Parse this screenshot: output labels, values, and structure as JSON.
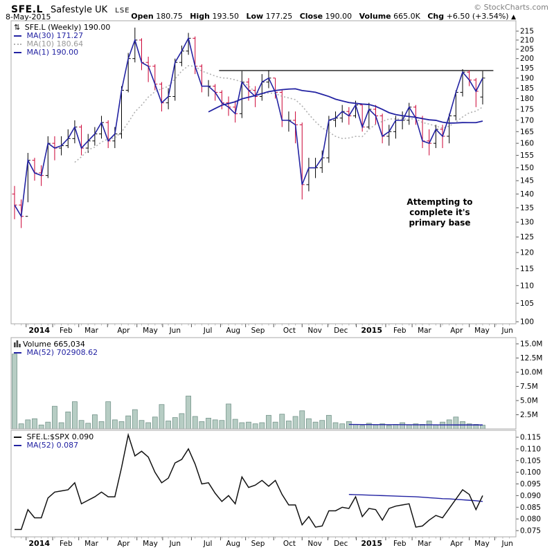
{
  "header": {
    "symbol": "SFE.L",
    "name": "Safestyle UK",
    "exchange": "LSE",
    "date": "8-May-2015",
    "copyright": "© StockCharts.com",
    "quote": {
      "open": {
        "label": "Open",
        "value": "180.75"
      },
      "high": {
        "label": "High",
        "value": "193.50"
      },
      "low": {
        "label": "Low",
        "value": "177.25"
      },
      "close": {
        "label": "Close",
        "value": "190.00"
      },
      "volume": {
        "label": "Volume",
        "value": "665.0K"
      },
      "chg": {
        "label": "Chg",
        "value": "+6.50 (+3.54%)",
        "arrow": "▲"
      }
    }
  },
  "chart_data": {
    "type": "ohlc+volume+line",
    "period": "Weekly",
    "weeks": 71,
    "months": [
      {
        "label": "2014",
        "week": 3.7,
        "bold": true
      },
      {
        "label": "Feb",
        "week": 7.7
      },
      {
        "label": "Mar",
        "week": 11.5
      },
      {
        "label": "Apr",
        "week": 16.3
      },
      {
        "label": "May",
        "week": 20.3
      },
      {
        "label": "Jun",
        "week": 24.0
      },
      {
        "label": "Jul",
        "week": 28.9
      },
      {
        "label": "Aug",
        "week": 32.7
      },
      {
        "label": "Sep",
        "week": 36.4
      },
      {
        "label": "Oct",
        "week": 41.1
      },
      {
        "label": "Nov",
        "week": 44.9
      },
      {
        "label": "Dec",
        "week": 48.8
      },
      {
        "label": "2015",
        "week": 53.4,
        "bold": true
      },
      {
        "label": "Feb",
        "week": 57.6
      },
      {
        "label": "Mar",
        "week": 61.3
      },
      {
        "label": "Apr",
        "week": 66.1
      },
      {
        "label": "May",
        "week": 69.9
      },
      {
        "label": "Jun",
        "week": 73.7
      }
    ],
    "price": {
      "scale": "log",
      "ylim": [
        100,
        215
      ],
      "ytick_step": 5,
      "legend": {
        "symbol_icon": "⇅",
        "symbol_label": "SFE.L (Weekly)",
        "symbol_value": "190.00",
        "ma30_label": "MA(30)",
        "ma30_value": "171.27",
        "ma10_label": "MA(10)",
        "ma10_value": "180.64",
        "ma1_label": "MA(1)",
        "ma1_value": "190.00"
      },
      "open": [
        140,
        136,
        132,
        153,
        148,
        147,
        160,
        158,
        159,
        162,
        167,
        158,
        161,
        164,
        169,
        161,
        164,
        184,
        200,
        210,
        198,
        196,
        187,
        178,
        181,
        198,
        204,
        211,
        196,
        186,
        186,
        183,
        178,
        176,
        173,
        188,
        184,
        181,
        188,
        190,
        183,
        170,
        170,
        168,
        143.5,
        150,
        150,
        154,
        170,
        171,
        174,
        172,
        177,
        167,
        175,
        172,
        163,
        165,
        170,
        170,
        176,
        171,
        161,
        160,
        166,
        163,
        172,
        183,
        193,
        189,
        180.75
      ],
      "high": [
        143,
        138,
        156,
        154,
        151,
        163,
        163,
        163,
        166,
        170,
        168,
        164,
        167,
        172,
        170,
        167,
        186,
        203,
        217,
        211,
        201,
        197,
        188,
        185,
        200,
        207,
        214,
        212,
        197,
        189,
        187,
        184,
        181,
        179,
        193.5,
        190,
        186,
        192,
        194,
        190,
        184,
        174,
        174,
        169,
        154,
        154,
        157,
        172,
        174,
        177,
        176,
        179,
        177,
        178,
        177,
        173,
        168,
        172,
        174,
        178,
        177,
        172,
        166,
        168,
        168,
        173,
        184,
        194.5,
        194,
        190,
        193.5
      ],
      "low": [
        131,
        128,
        137,
        145,
        143,
        146,
        153,
        155,
        158,
        160,
        155,
        156,
        159,
        162,
        158,
        158,
        162,
        183,
        198,
        194,
        188,
        184,
        174,
        175,
        179,
        196,
        202,
        192,
        183,
        181,
        179,
        175,
        172,
        169,
        171,
        179,
        176,
        179,
        185,
        180,
        167,
        165,
        160,
        138,
        141,
        146,
        148,
        152,
        167,
        169,
        168,
        171,
        165,
        166,
        168,
        160,
        159,
        162,
        166,
        168,
        168,
        158,
        155,
        158,
        158,
        160,
        170,
        181,
        186,
        176,
        177.25
      ],
      "close": [
        136,
        132,
        153,
        148,
        147,
        160,
        158,
        159,
        162,
        167,
        158,
        161,
        164,
        169,
        161,
        164,
        184,
        200,
        210,
        198,
        196,
        187,
        178,
        181,
        198,
        204,
        211,
        196,
        186,
        186,
        183,
        178,
        176,
        173,
        188,
        184,
        181,
        188,
        190,
        183,
        170,
        170,
        168,
        143.5,
        150,
        150,
        154,
        170,
        171,
        174,
        172,
        177,
        167,
        175,
        172,
        163,
        165,
        170,
        170,
        176,
        171,
        161,
        160,
        166,
        163,
        172,
        183,
        193,
        189,
        183.5,
        190
      ],
      "resistance": {
        "price": 193.8,
        "from_week": 31,
        "to_week": 71.6
      },
      "annotation": {
        "line1": "Attempting to complete it's",
        "line2": "primary base"
      }
    },
    "volume": {
      "ylim_millions": [
        0,
        15
      ],
      "yticks": [
        "2.5M",
        "5.0M",
        "7.5M",
        "10.0M",
        "12.5M",
        "15.0M"
      ],
      "legend": {
        "label": "Volume",
        "value": "665,034",
        "ma_label": "MA(52)",
        "ma_value": "702908.62"
      },
      "values_millions": [
        13.2,
        0.9,
        1.6,
        1.8,
        0.7,
        1.2,
        4.0,
        1.1,
        3.0,
        4.8,
        1.5,
        1.0,
        2.5,
        1.3,
        4.8,
        1.6,
        1.3,
        2.3,
        3.4,
        1.5,
        1.1,
        2.1,
        4.3,
        1.4,
        2.0,
        2.7,
        5.8,
        2.2,
        1.3,
        1.9,
        1.6,
        1.5,
        4.4,
        1.7,
        1.1,
        1.2,
        0.9,
        1.1,
        2.4,
        1.2,
        2.6,
        1.4,
        2.2,
        3.2,
        1.8,
        1.2,
        1.5,
        2.4,
        1.1,
        0.9,
        1.3,
        0.8,
        0.6,
        1.0,
        0.7,
        0.9,
        0.6,
        0.8,
        1.1,
        0.7,
        0.9,
        0.8,
        1.4,
        0.7,
        1.2,
        1.6,
        2.1,
        1.3,
        0.9,
        0.8,
        0.67
      ],
      "ma52": {
        "start": 50,
        "values_millions": [
          0.78,
          0.78,
          0.77,
          0.77,
          0.76,
          0.76,
          0.75,
          0.75,
          0.74,
          0.74,
          0.73,
          0.73,
          0.72,
          0.72,
          0.71,
          0.71,
          0.7,
          0.7,
          0.7,
          0.7,
          0.7
        ]
      }
    },
    "ratio": {
      "ylim": [
        0.075,
        0.115
      ],
      "ytick_step": 0.005,
      "legend": {
        "label": "SFE.L:$SPX",
        "value": "0.090",
        "ma_label": "MA(52)",
        "ma_value": "0.087"
      },
      "values": [
        0.0755,
        0.0755,
        0.084,
        0.0805,
        0.0805,
        0.089,
        0.0915,
        0.092,
        0.0925,
        0.0955,
        0.0865,
        0.088,
        0.0895,
        0.0915,
        0.0895,
        0.0895,
        0.102,
        0.116,
        0.107,
        0.109,
        0.1065,
        0.1,
        0.0955,
        0.0975,
        0.104,
        0.1055,
        0.11,
        0.1035,
        0.095,
        0.0955,
        0.091,
        0.0875,
        0.09,
        0.0865,
        0.098,
        0.0935,
        0.0945,
        0.0965,
        0.094,
        0.0965,
        0.0905,
        0.086,
        0.086,
        0.0775,
        0.081,
        0.0765,
        0.077,
        0.0835,
        0.0835,
        0.085,
        0.0845,
        0.0895,
        0.081,
        0.0845,
        0.084,
        0.0795,
        0.0845,
        0.0855,
        0.086,
        0.0865,
        0.0765,
        0.077,
        0.0795,
        0.0815,
        0.0805,
        0.0845,
        0.0885,
        0.0925,
        0.0905,
        0.084,
        0.09
      ],
      "ma52": {
        "start": 50,
        "values": [
          0.0905,
          0.0904,
          0.0903,
          0.0902,
          0.0901,
          0.09,
          0.0899,
          0.0898,
          0.0897,
          0.0896,
          0.0895,
          0.0893,
          0.0891,
          0.0889,
          0.0887,
          0.0886,
          0.0884,
          0.0882,
          0.088,
          0.0878,
          0.0875
        ]
      }
    },
    "colors": {
      "up": "#000000",
      "down": "#cc0033",
      "ma_line": "#2222a2",
      "ma_dotted": "#b0b0b0",
      "volume_fill": "#b7cdc4",
      "volume_stroke": "#74948a",
      "ratio_line": "#111111",
      "panel_border": "#a8a8a8",
      "resistance": "#000000"
    }
  }
}
